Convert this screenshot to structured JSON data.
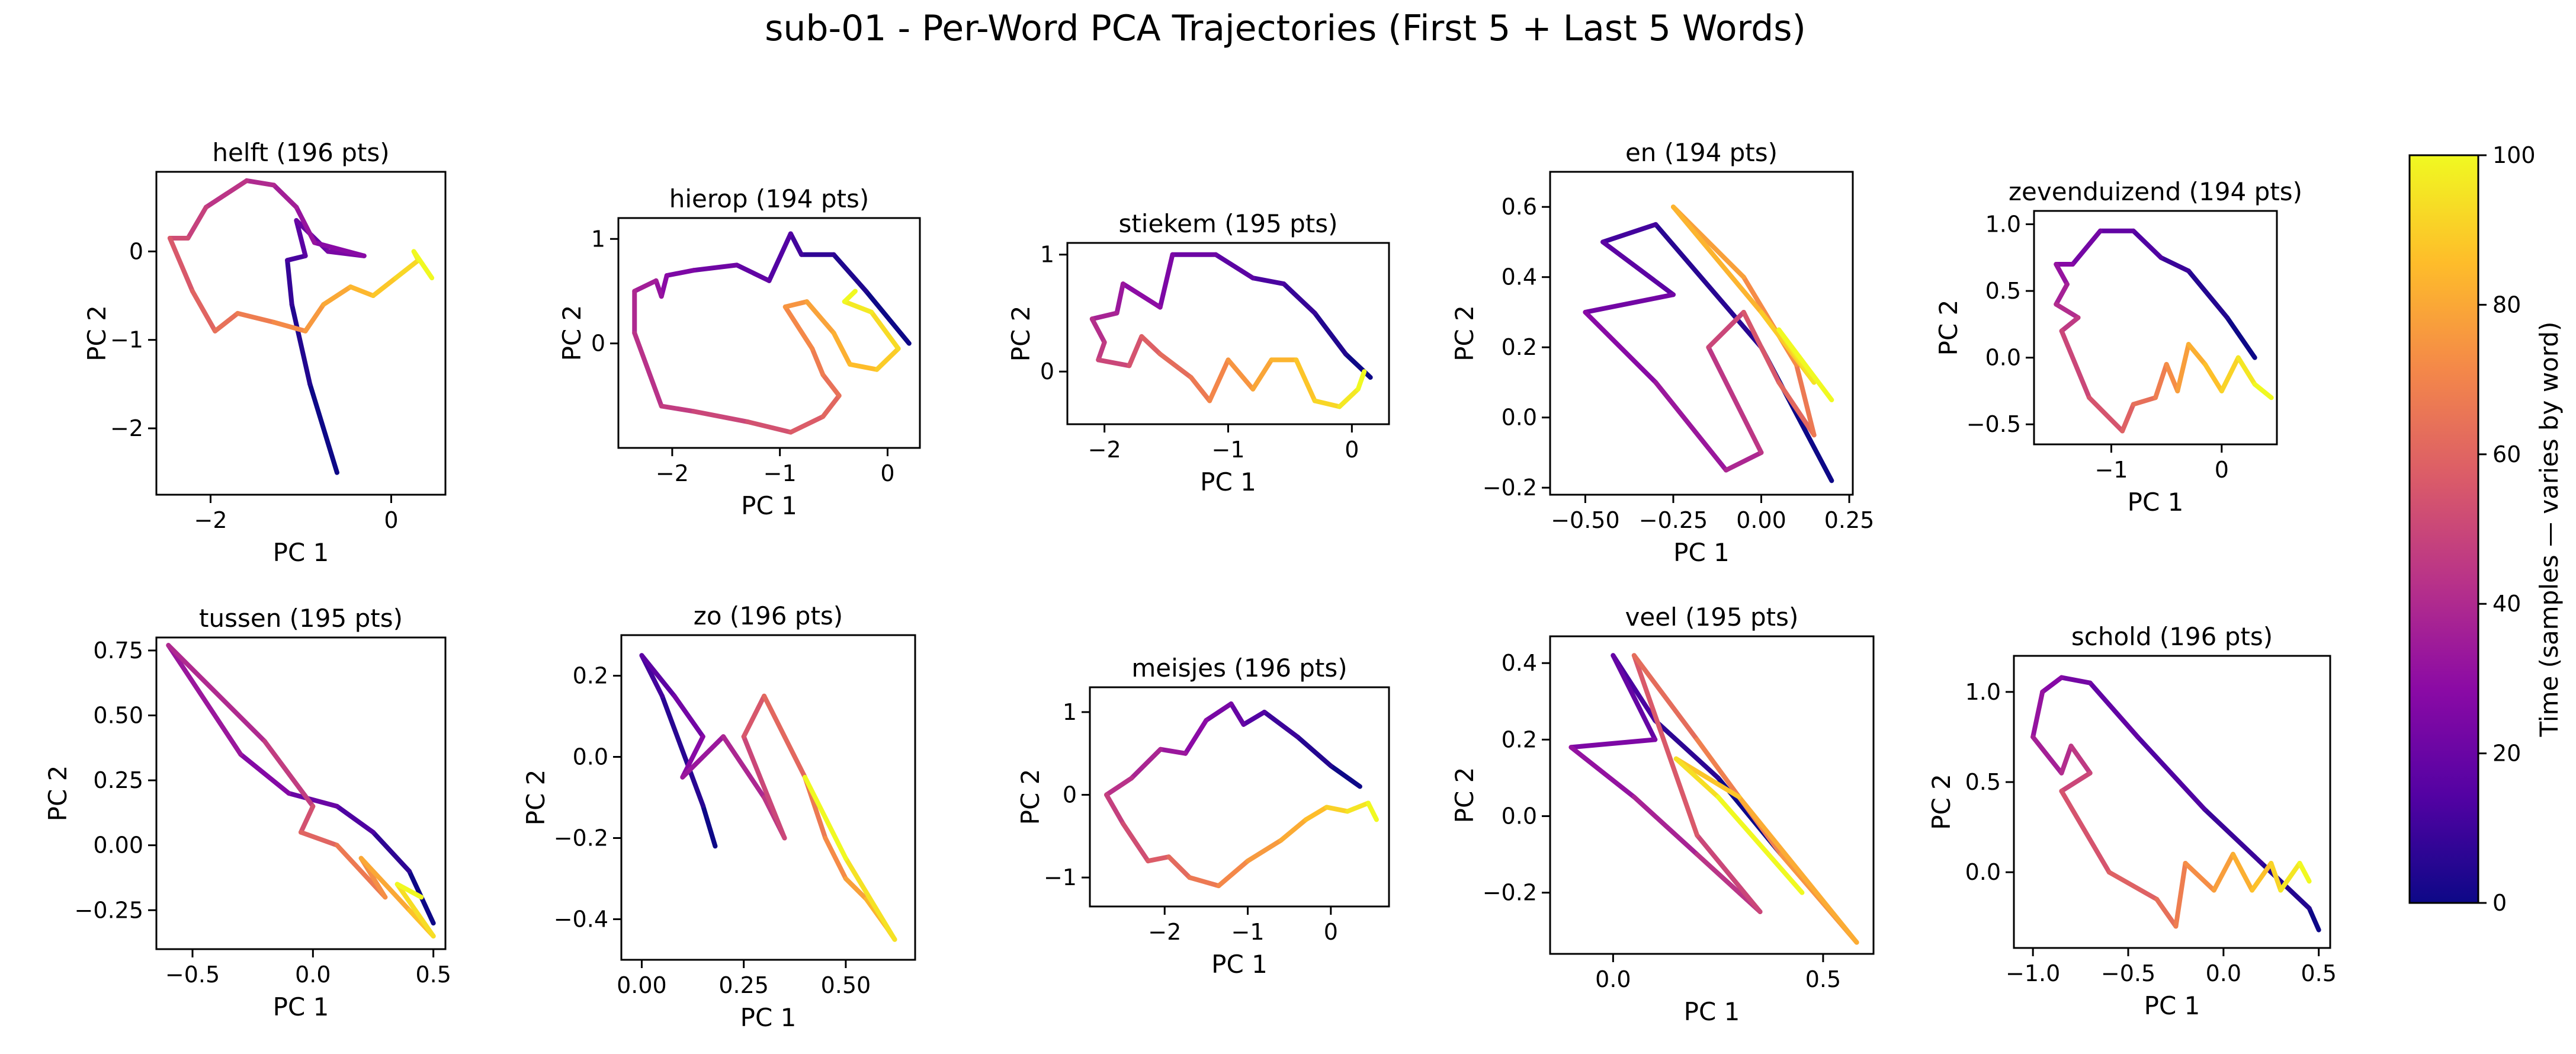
{
  "figure": {
    "suptitle": "sub-01 - Per-Word PCA Trajectories (First 5 + Last 5 Words)"
  },
  "colorbar": {
    "label": "Time (samples — varies by word)",
    "min": 0,
    "max": 100,
    "ticks": [
      0,
      20,
      40,
      60,
      80,
      100
    ],
    "colormap": "plasma",
    "stops": [
      "#0d0887",
      "#5302a3",
      "#8b0aa5",
      "#b83289",
      "#db5c68",
      "#f48849",
      "#febd2a",
      "#f0f921"
    ]
  },
  "chart_data": [
    {
      "type": "line",
      "title": "helft (196 pts)",
      "xlabel": "PC 1",
      "ylabel": "PC 2",
      "xlim": [
        -2.6,
        0.6
      ],
      "ylim": [
        -2.75,
        0.9
      ],
      "xticks": [
        -2,
        0
      ],
      "yticks": [
        -2,
        -1,
        0
      ],
      "colormap": "plasma",
      "points": [
        [
          -0.6,
          -2.5
        ],
        [
          -0.9,
          -1.5
        ],
        [
          -1.1,
          -0.6
        ],
        [
          -1.15,
          -0.1
        ],
        [
          -0.95,
          -0.05
        ],
        [
          -1.05,
          0.35
        ],
        [
          -0.7,
          0.0
        ],
        [
          -0.3,
          -0.05
        ],
        [
          -0.85,
          0.1
        ],
        [
          -1.05,
          0.5
        ],
        [
          -1.3,
          0.75
        ],
        [
          -1.6,
          0.8
        ],
        [
          -2.05,
          0.5
        ],
        [
          -2.25,
          0.15
        ],
        [
          -2.45,
          0.15
        ],
        [
          -2.2,
          -0.45
        ],
        [
          -1.95,
          -0.9
        ],
        [
          -1.7,
          -0.7
        ],
        [
          -1.3,
          -0.8
        ],
        [
          -0.95,
          -0.9
        ],
        [
          -0.75,
          -0.6
        ],
        [
          -0.45,
          -0.4
        ],
        [
          -0.2,
          -0.5
        ],
        [
          0.05,
          -0.3
        ],
        [
          0.3,
          -0.1
        ],
        [
          0.25,
          0.0
        ],
        [
          0.45,
          -0.3
        ]
      ]
    },
    {
      "type": "line",
      "title": "hierop (194 pts)",
      "xlabel": "PC 1",
      "ylabel": "PC 2",
      "xlim": [
        -2.5,
        0.3
      ],
      "ylim": [
        -1.0,
        1.2
      ],
      "xticks": [
        -2,
        -1,
        0
      ],
      "yticks": [
        0,
        1
      ],
      "colormap": "plasma",
      "points": [
        [
          0.2,
          0.0
        ],
        [
          -0.2,
          0.5
        ],
        [
          -0.5,
          0.85
        ],
        [
          -0.8,
          0.85
        ],
        [
          -0.9,
          1.05
        ],
        [
          -1.1,
          0.6
        ],
        [
          -1.4,
          0.75
        ],
        [
          -1.8,
          0.7
        ],
        [
          -2.05,
          0.65
        ],
        [
          -2.1,
          0.45
        ],
        [
          -2.15,
          0.6
        ],
        [
          -2.35,
          0.5
        ],
        [
          -2.35,
          0.1
        ],
        [
          -2.1,
          -0.6
        ],
        [
          -1.8,
          -0.65
        ],
        [
          -1.3,
          -0.75
        ],
        [
          -0.9,
          -0.85
        ],
        [
          -0.6,
          -0.7
        ],
        [
          -0.45,
          -0.5
        ],
        [
          -0.6,
          -0.3
        ],
        [
          -0.7,
          -0.05
        ],
        [
          -0.95,
          0.35
        ],
        [
          -0.75,
          0.4
        ],
        [
          -0.5,
          0.1
        ],
        [
          -0.35,
          -0.2
        ],
        [
          -0.1,
          -0.25
        ],
        [
          0.1,
          -0.05
        ],
        [
          -0.15,
          0.3
        ],
        [
          -0.4,
          0.4
        ],
        [
          -0.3,
          0.5
        ]
      ]
    },
    {
      "type": "line",
      "title": "stiekem (195 pts)",
      "xlabel": "PC 1",
      "ylabel": "PC 2",
      "xlim": [
        -2.3,
        0.3
      ],
      "ylim": [
        -0.45,
        1.1
      ],
      "xticks": [
        -2,
        -1,
        0
      ],
      "yticks": [
        0,
        1
      ],
      "colormap": "plasma",
      "points": [
        [
          0.15,
          -0.05
        ],
        [
          -0.05,
          0.15
        ],
        [
          -0.3,
          0.5
        ],
        [
          -0.55,
          0.75
        ],
        [
          -0.8,
          0.8
        ],
        [
          -1.1,
          1.0
        ],
        [
          -1.45,
          1.0
        ],
        [
          -1.55,
          0.55
        ],
        [
          -1.85,
          0.75
        ],
        [
          -1.9,
          0.5
        ],
        [
          -2.1,
          0.45
        ],
        [
          -2.0,
          0.25
        ],
        [
          -2.05,
          0.1
        ],
        [
          -1.8,
          0.05
        ],
        [
          -1.7,
          0.3
        ],
        [
          -1.55,
          0.15
        ],
        [
          -1.3,
          -0.05
        ],
        [
          -1.15,
          -0.25
        ],
        [
          -1.0,
          0.1
        ],
        [
          -0.8,
          -0.15
        ],
        [
          -0.65,
          0.1
        ],
        [
          -0.45,
          0.1
        ],
        [
          -0.3,
          -0.25
        ],
        [
          -0.1,
          -0.3
        ],
        [
          0.05,
          -0.15
        ],
        [
          0.1,
          0.0
        ]
      ]
    },
    {
      "type": "line",
      "title": "en (194 pts)",
      "xlabel": "PC 1",
      "ylabel": "PC 2",
      "xlim": [
        -0.6,
        0.26
      ],
      "ylim": [
        -0.22,
        0.7
      ],
      "xticks": [
        -0.5,
        -0.25,
        0.0,
        0.25
      ],
      "yticks": [
        -0.2,
        0.0,
        0.2,
        0.4,
        0.6
      ],
      "colormap": "plasma",
      "points": [
        [
          0.2,
          -0.18
        ],
        [
          0.0,
          0.2
        ],
        [
          -0.3,
          0.55
        ],
        [
          -0.45,
          0.5
        ],
        [
          -0.25,
          0.35
        ],
        [
          -0.5,
          0.3
        ],
        [
          -0.3,
          0.1
        ],
        [
          -0.1,
          -0.15
        ],
        [
          0.0,
          -0.1
        ],
        [
          -0.15,
          0.2
        ],
        [
          -0.05,
          0.3
        ],
        [
          0.05,
          0.1
        ],
        [
          0.15,
          -0.05
        ],
        [
          0.1,
          0.15
        ],
        [
          -0.05,
          0.4
        ],
        [
          -0.25,
          0.6
        ],
        [
          0.0,
          0.3
        ],
        [
          0.15,
          0.1
        ],
        [
          0.05,
          0.25
        ],
        [
          0.2,
          0.05
        ]
      ]
    },
    {
      "type": "line",
      "title": "zevenduizend (194 pts)",
      "xlabel": "PC 1",
      "ylabel": "PC 2",
      "xlim": [
        -1.7,
        0.5
      ],
      "ylim": [
        -0.65,
        1.1
      ],
      "xticks": [
        -1,
        0
      ],
      "yticks": [
        -0.5,
        0.0,
        0.5,
        1.0
      ],
      "colormap": "plasma",
      "points": [
        [
          0.3,
          0.0
        ],
        [
          0.05,
          0.3
        ],
        [
          -0.3,
          0.65
        ],
        [
          -0.55,
          0.75
        ],
        [
          -0.8,
          0.95
        ],
        [
          -1.1,
          0.95
        ],
        [
          -1.35,
          0.7
        ],
        [
          -1.5,
          0.7
        ],
        [
          -1.4,
          0.55
        ],
        [
          -1.5,
          0.4
        ],
        [
          -1.3,
          0.3
        ],
        [
          -1.45,
          0.2
        ],
        [
          -1.2,
          -0.3
        ],
        [
          -0.9,
          -0.55
        ],
        [
          -0.8,
          -0.35
        ],
        [
          -0.6,
          -0.3
        ],
        [
          -0.5,
          -0.05
        ],
        [
          -0.4,
          -0.25
        ],
        [
          -0.3,
          0.1
        ],
        [
          -0.15,
          -0.05
        ],
        [
          0.0,
          -0.25
        ],
        [
          0.15,
          0.0
        ],
        [
          0.3,
          -0.2
        ],
        [
          0.45,
          -0.3
        ]
      ]
    },
    {
      "type": "line",
      "title": "tussen (195 pts)",
      "xlabel": "PC 1",
      "ylabel": "PC 2",
      "xlim": [
        -0.65,
        0.55
      ],
      "ylim": [
        -0.4,
        0.8
      ],
      "xticks": [
        -0.5,
        0.0,
        0.5
      ],
      "yticks": [
        -0.25,
        0.0,
        0.25,
        0.5,
        0.75
      ],
      "colormap": "plasma",
      "points": [
        [
          0.5,
          -0.3
        ],
        [
          0.4,
          -0.1
        ],
        [
          0.25,
          0.05
        ],
        [
          0.1,
          0.15
        ],
        [
          -0.1,
          0.2
        ],
        [
          -0.3,
          0.35
        ],
        [
          -0.6,
          0.77
        ],
        [
          -0.2,
          0.4
        ],
        [
          0.0,
          0.15
        ],
        [
          -0.05,
          0.05
        ],
        [
          0.1,
          0.0
        ],
        [
          0.3,
          -0.2
        ],
        [
          0.2,
          -0.05
        ],
        [
          0.4,
          -0.25
        ],
        [
          0.5,
          -0.35
        ],
        [
          0.35,
          -0.15
        ],
        [
          0.45,
          -0.2
        ]
      ]
    },
    {
      "type": "line",
      "title": "zo (196 pts)",
      "xlabel": "PC 1",
      "ylabel": "PC 2",
      "xlim": [
        -0.05,
        0.67
      ],
      "ylim": [
        -0.5,
        0.3
      ],
      "xticks": [
        0.0,
        0.25,
        0.5
      ],
      "yticks": [
        -0.4,
        -0.2,
        0.0,
        0.2
      ],
      "colormap": "plasma",
      "points": [
        [
          0.18,
          -0.22
        ],
        [
          0.15,
          -0.12
        ],
        [
          0.05,
          0.15
        ],
        [
          0.0,
          0.25
        ],
        [
          0.08,
          0.15
        ],
        [
          0.15,
          0.05
        ],
        [
          0.1,
          -0.05
        ],
        [
          0.2,
          0.05
        ],
        [
          0.3,
          -0.1
        ],
        [
          0.35,
          -0.2
        ],
        [
          0.25,
          0.05
        ],
        [
          0.3,
          0.15
        ],
        [
          0.4,
          -0.05
        ],
        [
          0.45,
          -0.2
        ],
        [
          0.5,
          -0.3
        ],
        [
          0.55,
          -0.35
        ],
        [
          0.6,
          -0.42
        ],
        [
          0.62,
          -0.45
        ],
        [
          0.5,
          -0.25
        ],
        [
          0.4,
          -0.05
        ]
      ]
    },
    {
      "type": "line",
      "title": "meisjes (196 pts)",
      "xlabel": "PC 1",
      "ylabel": "PC 2",
      "xlim": [
        -2.9,
        0.7
      ],
      "ylim": [
        -1.35,
        1.3
      ],
      "xticks": [
        -2,
        -1,
        0
      ],
      "yticks": [
        -1,
        0,
        1
      ],
      "colormap": "plasma",
      "points": [
        [
          0.35,
          0.1
        ],
        [
          0.0,
          0.35
        ],
        [
          -0.4,
          0.7
        ],
        [
          -0.8,
          1.0
        ],
        [
          -1.05,
          0.85
        ],
        [
          -1.2,
          1.1
        ],
        [
          -1.5,
          0.9
        ],
        [
          -1.75,
          0.5
        ],
        [
          -2.05,
          0.55
        ],
        [
          -2.4,
          0.2
        ],
        [
          -2.7,
          0.0
        ],
        [
          -2.5,
          -0.35
        ],
        [
          -2.2,
          -0.8
        ],
        [
          -1.95,
          -0.75
        ],
        [
          -1.7,
          -1.0
        ],
        [
          -1.35,
          -1.1
        ],
        [
          -1.0,
          -0.8
        ],
        [
          -0.6,
          -0.55
        ],
        [
          -0.3,
          -0.3
        ],
        [
          -0.05,
          -0.15
        ],
        [
          0.2,
          -0.2
        ],
        [
          0.45,
          -0.1
        ],
        [
          0.55,
          -0.3
        ]
      ]
    },
    {
      "type": "line",
      "title": "veel (195 pts)",
      "xlabel": "PC 1",
      "ylabel": "PC 2",
      "xlim": [
        -0.15,
        0.62
      ],
      "ylim": [
        -0.36,
        0.47
      ],
      "xticks": [
        0.0,
        0.5
      ],
      "yticks": [
        -0.2,
        0.0,
        0.2,
        0.4
      ],
      "colormap": "plasma",
      "points": [
        [
          0.4,
          -0.1
        ],
        [
          0.25,
          0.1
        ],
        [
          0.1,
          0.25
        ],
        [
          0.0,
          0.42
        ],
        [
          0.1,
          0.2
        ],
        [
          -0.1,
          0.18
        ],
        [
          0.05,
          0.05
        ],
        [
          0.2,
          -0.1
        ],
        [
          0.35,
          -0.25
        ],
        [
          0.2,
          -0.05
        ],
        [
          0.05,
          0.42
        ],
        [
          0.2,
          0.2
        ],
        [
          0.4,
          -0.1
        ],
        [
          0.58,
          -0.33
        ],
        [
          0.3,
          0.05
        ],
        [
          0.15,
          0.15
        ],
        [
          0.25,
          0.05
        ],
        [
          0.45,
          -0.2
        ]
      ]
    },
    {
      "type": "line",
      "title": "schold (196 pts)",
      "xlabel": "PC 1",
      "ylabel": "PC 2",
      "xlim": [
        -1.1,
        0.56
      ],
      "ylim": [
        -0.42,
        1.2
      ],
      "xticks": [
        -1.0,
        -0.5,
        0.0,
        0.5
      ],
      "yticks": [
        0.0,
        0.5,
        1.0
      ],
      "colormap": "plasma",
      "points": [
        [
          0.5,
          -0.32
        ],
        [
          0.45,
          -0.2
        ],
        [
          0.2,
          0.05
        ],
        [
          -0.1,
          0.35
        ],
        [
          -0.45,
          0.75
        ],
        [
          -0.7,
          1.05
        ],
        [
          -0.85,
          1.08
        ],
        [
          -0.95,
          1.0
        ],
        [
          -1.0,
          0.75
        ],
        [
          -0.85,
          0.55
        ],
        [
          -0.8,
          0.7
        ],
        [
          -0.7,
          0.55
        ],
        [
          -0.85,
          0.45
        ],
        [
          -0.6,
          0.0
        ],
        [
          -0.35,
          -0.15
        ],
        [
          -0.25,
          -0.3
        ],
        [
          -0.2,
          0.05
        ],
        [
          -0.05,
          -0.1
        ],
        [
          0.05,
          0.1
        ],
        [
          0.15,
          -0.1
        ],
        [
          0.25,
          0.05
        ],
        [
          0.3,
          -0.1
        ],
        [
          0.4,
          0.05
        ],
        [
          0.45,
          -0.05
        ]
      ]
    }
  ]
}
